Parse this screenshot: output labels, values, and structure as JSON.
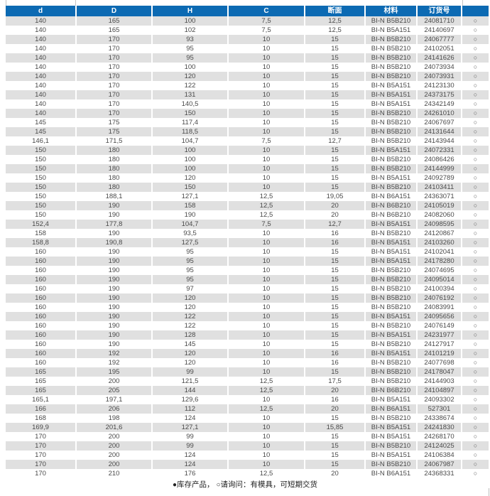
{
  "colors": {
    "header_bg": "#0c6ab3",
    "header_text": "#ffffff",
    "row_alt_bg": "#e0e0e0",
    "row_text": "#4a4a4a"
  },
  "table": {
    "columns": [
      {
        "id": "d",
        "label": "d"
      },
      {
        "id": "D",
        "label": "D"
      },
      {
        "id": "H",
        "label": "H"
      },
      {
        "id": "C",
        "label": "C"
      },
      {
        "id": "section",
        "label": "断面"
      },
      {
        "id": "material",
        "label": "材料"
      },
      {
        "id": "order-no",
        "label": "订货号"
      },
      {
        "id": "availability",
        "label": ""
      }
    ],
    "rows": [
      [
        "140",
        "165",
        "100",
        "7,5",
        "12,5",
        "BI-N B5B210",
        "24081710",
        "○"
      ],
      [
        "140",
        "165",
        "102",
        "7,5",
        "12,5",
        "BI-N B5A151",
        "24140697",
        "○"
      ],
      [
        "140",
        "170",
        "93",
        "10",
        "15",
        "BI-N B5B210",
        "24067777",
        "○"
      ],
      [
        "140",
        "170",
        "95",
        "10",
        "15",
        "BI-N B5B210",
        "24102051",
        "○"
      ],
      [
        "140",
        "170",
        "95",
        "10",
        "15",
        "BI-N B5B210",
        "24141626",
        "○"
      ],
      [
        "140",
        "170",
        "100",
        "10",
        "15",
        "BI-N B5B210",
        "24073934",
        "○"
      ],
      [
        "140",
        "170",
        "120",
        "10",
        "15",
        "BI-N B5B210",
        "24073931",
        "○"
      ],
      [
        "140",
        "170",
        "122",
        "10",
        "15",
        "BI-N B5A151",
        "24123130",
        "○"
      ],
      [
        "140",
        "170",
        "131",
        "10",
        "15",
        "BI-N B5A151",
        "24373175",
        "○"
      ],
      [
        "140",
        "170",
        "140,5",
        "10",
        "15",
        "BI-N B5A151",
        "24342149",
        "○"
      ],
      [
        "140",
        "170",
        "150",
        "10",
        "15",
        "BI-N B5B210",
        "24261010",
        "○"
      ],
      [
        "145",
        "175",
        "117,4",
        "10",
        "15",
        "BI-N B5B210",
        "24067697",
        "○"
      ],
      [
        "145",
        "175",
        "118,5",
        "10",
        "15",
        "BI-N B5B210",
        "24131644",
        "○"
      ],
      [
        "146,1",
        "171,5",
        "104,7",
        "7,5",
        "12,7",
        "BI-N B5B210",
        "24143944",
        "○"
      ],
      [
        "150",
        "180",
        "100",
        "10",
        "15",
        "BI-N B5A151",
        "24072331",
        "○"
      ],
      [
        "150",
        "180",
        "100",
        "10",
        "15",
        "BI-N B5B210",
        "24086426",
        "○"
      ],
      [
        "150",
        "180",
        "100",
        "10",
        "15",
        "BI-N B5B210",
        "24144999",
        "○"
      ],
      [
        "150",
        "180",
        "120",
        "10",
        "15",
        "BI-N B5A151",
        "24092789",
        "○"
      ],
      [
        "150",
        "180",
        "150",
        "10",
        "15",
        "BI-N B5B210",
        "24103411",
        "○"
      ],
      [
        "150",
        "188,1",
        "127,1",
        "12,5",
        "19,05",
        "BI-N B6A151",
        "24363071",
        "○"
      ],
      [
        "150",
        "190",
        "158",
        "12,5",
        "20",
        "BI-N B6B210",
        "24105019",
        "○"
      ],
      [
        "150",
        "190",
        "190",
        "12,5",
        "20",
        "BI-N B6B210",
        "24082060",
        "○"
      ],
      [
        "152,4",
        "177,8",
        "104,7",
        "7,5",
        "12,7",
        "BI-N B5A151",
        "24098595",
        "○"
      ],
      [
        "158",
        "190",
        "93,5",
        "10",
        "16",
        "BI-N B5B210",
        "24120867",
        "○"
      ],
      [
        "158,8",
        "190,8",
        "127,5",
        "10",
        "16",
        "BI-N B5A151",
        "24103260",
        "○"
      ],
      [
        "160",
        "190",
        "95",
        "10",
        "15",
        "BI-N B5A151",
        "24102041",
        "○"
      ],
      [
        "160",
        "190",
        "95",
        "10",
        "15",
        "BI-N B5A151",
        "24178280",
        "○"
      ],
      [
        "160",
        "190",
        "95",
        "10",
        "15",
        "BI-N B5B210",
        "24074695",
        "○"
      ],
      [
        "160",
        "190",
        "95",
        "10",
        "15",
        "BI-N B5B210",
        "24095014",
        "○"
      ],
      [
        "160",
        "190",
        "97",
        "10",
        "15",
        "BI-N B5B210",
        "24100394",
        "○"
      ],
      [
        "160",
        "190",
        "120",
        "10",
        "15",
        "BI-N B5B210",
        "24076192",
        "○"
      ],
      [
        "160",
        "190",
        "120",
        "10",
        "15",
        "BI-N B5B210",
        "24083991",
        "○"
      ],
      [
        "160",
        "190",
        "122",
        "10",
        "15",
        "BI-N B5A151",
        "24095656",
        "○"
      ],
      [
        "160",
        "190",
        "122",
        "10",
        "15",
        "BI-N B5B210",
        "24076149",
        "○"
      ],
      [
        "160",
        "190",
        "128",
        "10",
        "15",
        "BI-N B5A151",
        "24231977",
        "○"
      ],
      [
        "160",
        "190",
        "145",
        "10",
        "15",
        "BI-N B5B210",
        "24127917",
        "○"
      ],
      [
        "160",
        "192",
        "120",
        "10",
        "16",
        "BI-N B5A151",
        "24101219",
        "○"
      ],
      [
        "160",
        "192",
        "120",
        "10",
        "16",
        "BI-N B5B210",
        "24077698",
        "○"
      ],
      [
        "165",
        "195",
        "99",
        "10",
        "15",
        "BI-N B5B210",
        "24178047",
        "○"
      ],
      [
        "165",
        "200",
        "121,5",
        "12,5",
        "17,5",
        "BI-N B5B210",
        "24144903",
        "○"
      ],
      [
        "165",
        "205",
        "144",
        "12,5",
        "20",
        "BI-N B6B210",
        "24104897",
        "○"
      ],
      [
        "165,1",
        "197,1",
        "129,6",
        "10",
        "16",
        "BI-N B5A151",
        "24093302",
        "○"
      ],
      [
        "166",
        "206",
        "112",
        "12,5",
        "20",
        "BI-N B6A151",
        "527301",
        "○"
      ],
      [
        "168",
        "198",
        "124",
        "10",
        "15",
        "BI-N B5B210",
        "24338674",
        "○"
      ],
      [
        "169,9",
        "201,6",
        "127,1",
        "10",
        "15,85",
        "BI-N B5A151",
        "24241830",
        "○"
      ],
      [
        "170",
        "200",
        "99",
        "10",
        "15",
        "BI-N B5A151",
        "24268170",
        "○"
      ],
      [
        "170",
        "200",
        "99",
        "10",
        "15",
        "BI-N B5B210",
        "24124025",
        "○"
      ],
      [
        "170",
        "200",
        "124",
        "10",
        "15",
        "BI-N B5A151",
        "24106384",
        "○"
      ],
      [
        "170",
        "200",
        "124",
        "10",
        "15",
        "BI-N B5B210",
        "24067987",
        "○"
      ],
      [
        "170",
        "210",
        "176",
        "12,5",
        "20",
        "BI-N B6A151",
        "24368331",
        "○"
      ]
    ]
  },
  "footer": {
    "stock_symbol": "●",
    "stock_text": "库存产品，",
    "inquiry_symbol": "○",
    "inquiry_text": "请询问：有模具，可短期交货"
  }
}
